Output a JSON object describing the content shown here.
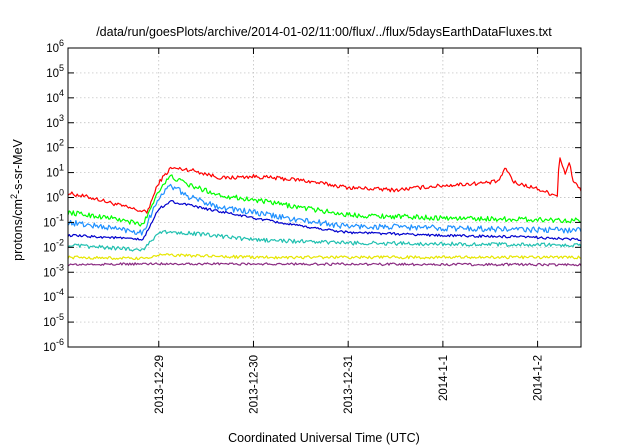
{
  "chart_data": {
    "type": "line",
    "title": "/data/run/goesPlots/archive/2014-01-02/11:00/flux/../flux/5daysEarthDataFluxes.txt",
    "xlabel": "Coordinated Universal Time (UTC)",
    "ylabel": {
      "base": "protons/cm",
      "sup": "2",
      "rest": "-s-sr-MeV"
    },
    "x_range": [
      "2013-12-28T01:00",
      "2014-01-02T11:00"
    ],
    "x_ticks": [
      {
        "t": "2013-12-29T00:00",
        "label": "2013-12-29"
      },
      {
        "t": "2013-12-30T00:00",
        "label": "2013-12-30"
      },
      {
        "t": "2013-12-31T00:00",
        "label": "2013-12-31"
      },
      {
        "t": "2014-01-01T00:00",
        "label": "2014-1-1"
      },
      {
        "t": "2014-01-02T00:00",
        "label": "2014-1-2"
      }
    ],
    "y_scale": "log",
    "ylim": [
      1e-06,
      1000000.0
    ],
    "y_ticks": [
      {
        "base": "10",
        "exp": "-6",
        "v": 1e-06
      },
      {
        "base": "10",
        "exp": "-5",
        "v": 1e-05
      },
      {
        "base": "10",
        "exp": "-4",
        "v": 0.0001
      },
      {
        "base": "10",
        "exp": "-3",
        "v": 0.001
      },
      {
        "base": "10",
        "exp": "-2",
        "v": 0.01
      },
      {
        "base": "10",
        "exp": "-1",
        "v": 0.1
      },
      {
        "base": "10",
        "exp": "0",
        "v": 1
      },
      {
        "base": "10",
        "exp": "1",
        "v": 10
      },
      {
        "base": "10",
        "exp": "2",
        "v": 100
      },
      {
        "base": "10",
        "exp": "3",
        "v": 1000
      },
      {
        "base": "10",
        "exp": "4",
        "v": 10000
      },
      {
        "base": "10",
        "exp": "5",
        "v": 100000
      },
      {
        "base": "10",
        "exp": "6",
        "v": 1000000
      }
    ],
    "grid": true,
    "legend": "none",
    "series": [
      {
        "color": "#ff0000",
        "noise": 0.08,
        "points": [
          [
            "2013-12-28T01:00",
            1.5
          ],
          [
            "2013-12-28T08:00",
            0.9
          ],
          [
            "2013-12-28T16:00",
            0.4
          ],
          [
            "2013-12-28T21:00",
            0.25
          ],
          [
            "2013-12-29T00:00",
            4
          ],
          [
            "2013-12-29T03:00",
            15
          ],
          [
            "2013-12-29T08:00",
            13
          ],
          [
            "2013-12-29T16:00",
            6
          ],
          [
            "2013-12-30T00:00",
            7
          ],
          [
            "2013-12-30T12:00",
            5
          ],
          [
            "2013-12-31T00:00",
            2.5
          ],
          [
            "2013-12-31T12:00",
            2
          ],
          [
            "2013-12-31T18:00",
            2.5
          ],
          [
            "2014-01-01T00:00",
            3
          ],
          [
            "2014-01-01T12:00",
            4
          ],
          [
            "2014-01-01T14:00",
            4.5
          ],
          [
            "2014-01-01T16:00",
            15
          ],
          [
            "2014-01-01T18:00",
            4
          ],
          [
            "2014-01-01T23:00",
            2.5
          ],
          [
            "2014-01-02T03:00",
            1.5
          ],
          [
            "2014-01-02T05:00",
            1.2
          ],
          [
            "2014-01-02T05:30",
            50
          ],
          [
            "2014-01-02T07:00",
            8
          ],
          [
            "2014-01-02T08:00",
            25
          ],
          [
            "2014-01-02T09:00",
            5
          ],
          [
            "2014-01-02T11:00",
            2
          ]
        ]
      },
      {
        "color": "#00ff00",
        "noise": 0.1,
        "points": [
          [
            "2013-12-28T01:00",
            0.25
          ],
          [
            "2013-12-28T12:00",
            0.15
          ],
          [
            "2013-12-28T20:00",
            0.08
          ],
          [
            "2013-12-29T00:00",
            2
          ],
          [
            "2013-12-29T03:00",
            7
          ],
          [
            "2013-12-29T08:00",
            3
          ],
          [
            "2013-12-29T16:00",
            1.2
          ],
          [
            "2013-12-30T00:00",
            0.8
          ],
          [
            "2013-12-30T12:00",
            0.4
          ],
          [
            "2013-12-31T00:00",
            0.2
          ],
          [
            "2014-01-01T00:00",
            0.15
          ],
          [
            "2014-01-02T00:00",
            0.13
          ],
          [
            "2014-01-02T11:00",
            0.12
          ]
        ]
      },
      {
        "color": "#1e90ff",
        "noise": 0.12,
        "points": [
          [
            "2013-12-28T01:00",
            0.1
          ],
          [
            "2013-12-28T12:00",
            0.06
          ],
          [
            "2013-12-28T20:00",
            0.04
          ],
          [
            "2013-12-29T00:00",
            1
          ],
          [
            "2013-12-29T03:00",
            3
          ],
          [
            "2013-12-29T08:00",
            1
          ],
          [
            "2013-12-29T16:00",
            0.4
          ],
          [
            "2013-12-30T00:00",
            0.25
          ],
          [
            "2013-12-30T12:00",
            0.12
          ],
          [
            "2013-12-31T00:00",
            0.07
          ],
          [
            "2014-01-01T00:00",
            0.06
          ],
          [
            "2014-01-02T00:00",
            0.05
          ],
          [
            "2014-01-02T11:00",
            0.05
          ]
        ]
      },
      {
        "color": "#0000cd",
        "noise": 0.05,
        "points": [
          [
            "2013-12-28T01:00",
            0.03
          ],
          [
            "2013-12-28T12:00",
            0.025
          ],
          [
            "2013-12-28T20:00",
            0.02
          ],
          [
            "2013-12-29T00:00",
            0.35
          ],
          [
            "2013-12-29T03:00",
            0.7
          ],
          [
            "2013-12-29T12:00",
            0.35
          ],
          [
            "2013-12-30T00:00",
            0.15
          ],
          [
            "2013-12-30T12:00",
            0.07
          ],
          [
            "2013-12-31T00:00",
            0.04
          ],
          [
            "2014-01-01T00:00",
            0.03
          ],
          [
            "2014-01-02T00:00",
            0.025
          ],
          [
            "2014-01-02T11:00",
            0.02
          ]
        ]
      },
      {
        "color": "#20c0b0",
        "noise": 0.08,
        "points": [
          [
            "2013-12-28T01:00",
            0.012
          ],
          [
            "2013-12-28T20:00",
            0.008
          ],
          [
            "2013-12-29T00:00",
            0.04
          ],
          [
            "2013-12-29T06:00",
            0.04
          ],
          [
            "2013-12-30T00:00",
            0.02
          ],
          [
            "2013-12-31T00:00",
            0.015
          ],
          [
            "2014-01-02T11:00",
            0.012
          ]
        ]
      },
      {
        "color": "#e6e600",
        "noise": 0.06,
        "points": [
          [
            "2013-12-28T01:00",
            0.004
          ],
          [
            "2013-12-28T20:00",
            0.0035
          ],
          [
            "2013-12-29T00:00",
            0.005
          ],
          [
            "2013-12-30T00:00",
            0.004
          ],
          [
            "2014-01-02T11:00",
            0.004
          ]
        ]
      },
      {
        "color": "#8b2c82",
        "noise": 0.05,
        "points": [
          [
            "2013-12-28T01:00",
            0.002
          ],
          [
            "2013-12-29T00:00",
            0.0022
          ],
          [
            "2014-01-02T11:00",
            0.002
          ]
        ]
      }
    ]
  }
}
